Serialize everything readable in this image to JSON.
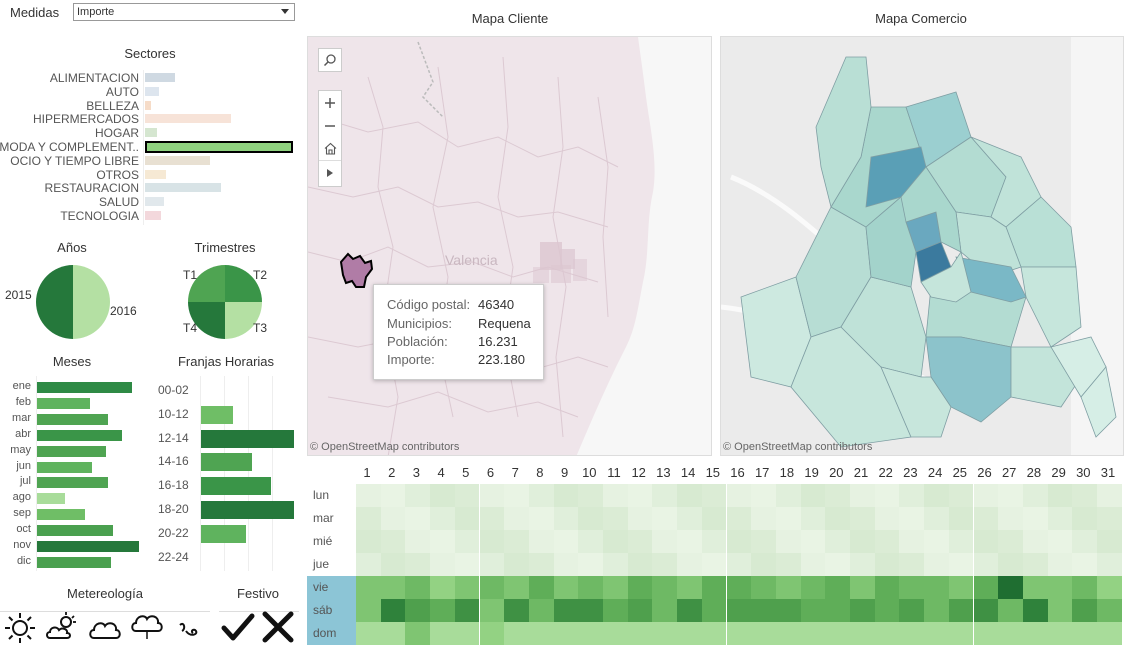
{
  "medidas": {
    "label": "Medidas",
    "selected": "Importe"
  },
  "sectores": {
    "title": "Sectores",
    "items": [
      {
        "label": "ALIMENTACION",
        "value": 30,
        "color": "#cfd9e2"
      },
      {
        "label": "AUTO",
        "value": 14,
        "color": "#dde5ee"
      },
      {
        "label": "BELLEZA",
        "value": 6,
        "color": "#f6dcc8"
      },
      {
        "label": "HIPERMERCADOS",
        "value": 86,
        "color": "#f7e3d8"
      },
      {
        "label": "HOGAR",
        "value": 12,
        "color": "#d5e6d0"
      },
      {
        "label": "MODA Y COMPLEMENT..",
        "value": 148,
        "color": "#8fd17f",
        "selected": true
      },
      {
        "label": "OCIO Y TIEMPO LIBRE",
        "value": 65,
        "color": "#e8e0d2"
      },
      {
        "label": "OTROS",
        "value": 21,
        "color": "#f6e9d4"
      },
      {
        "label": "RESTAURACION",
        "value": 76,
        "color": "#d8e3e6"
      },
      {
        "label": "SALUD",
        "value": 19,
        "color": "#e1e8ec"
      },
      {
        "label": "TECNOLOGIA",
        "value": 16,
        "color": "#f3d8dc"
      }
    ]
  },
  "anos": {
    "title": "Años",
    "label_left": "2015",
    "label_right": "2016"
  },
  "trimestres": {
    "title": "Trimestres",
    "labels": [
      "T1",
      "T2",
      "T3",
      "T4"
    ]
  },
  "meses": {
    "title": "Meses",
    "items": [
      {
        "label": "ene",
        "value": 95,
        "color": "#2e8a45"
      },
      {
        "label": "feb",
        "value": 53,
        "color": "#5fb35e"
      },
      {
        "label": "mar",
        "value": 71,
        "color": "#4fa452"
      },
      {
        "label": "abr",
        "value": 85,
        "color": "#3a9548"
      },
      {
        "label": "may",
        "value": 69,
        "color": "#4fa452"
      },
      {
        "label": "jun",
        "value": 55,
        "color": "#5fb35e"
      },
      {
        "label": "jul",
        "value": 71,
        "color": "#4fa452"
      },
      {
        "label": "ago",
        "value": 28,
        "color": "#a8dc9a"
      },
      {
        "label": "sep",
        "value": 48,
        "color": "#6fbe66"
      },
      {
        "label": "oct",
        "value": 76,
        "color": "#4aa04f"
      },
      {
        "label": "nov",
        "value": 102,
        "color": "#25783b"
      },
      {
        "label": "dic",
        "value": 74,
        "color": "#4aa04f"
      }
    ]
  },
  "franjas": {
    "title": "Franjas Horarias",
    "items": [
      {
        "label": "00-02",
        "value": 0,
        "color": "#9fd68f"
      },
      {
        "label": "10-12",
        "value": 32,
        "color": "#6fbe66"
      },
      {
        "label": "12-14",
        "value": 93,
        "color": "#25783b"
      },
      {
        "label": "14-16",
        "value": 51,
        "color": "#4fa452"
      },
      {
        "label": "16-18",
        "value": 70,
        "color": "#3a9548"
      },
      {
        "label": "18-20",
        "value": 93,
        "color": "#25783b"
      },
      {
        "label": "20-22",
        "value": 45,
        "color": "#5fb35e"
      },
      {
        "label": "22-24",
        "value": 0,
        "color": "#9fd68f"
      }
    ]
  },
  "mapa_cliente": {
    "title": "Mapa Cliente",
    "place_label": "Valencia",
    "credit": "© OpenStreetMap contributors"
  },
  "mapa_comercio": {
    "title": "Mapa Comercio",
    "credit": "© OpenStreetMap contributors"
  },
  "tooltip": {
    "rows": [
      {
        "key": "Código postal:",
        "value": "46340"
      },
      {
        "key": "Municipios:",
        "value": "Requena"
      },
      {
        "key": "Población:",
        "value": "16.231"
      },
      {
        "key": "Importe:",
        "value": "223.180"
      }
    ]
  },
  "heatmap": {
    "days": [
      "lun",
      "mar",
      "mié",
      "jue",
      "vie",
      "sáb",
      "dom"
    ],
    "columns": [
      "1",
      "2",
      "3",
      "4",
      "5",
      "6",
      "7",
      "8",
      "9",
      "10",
      "11",
      "12",
      "13",
      "14",
      "15",
      "16",
      "17",
      "18",
      "19",
      "20",
      "21",
      "22",
      "23",
      "24",
      "25",
      "26",
      "27",
      "28",
      "29",
      "30",
      "31"
    ],
    "highlight_color": "#8cc5d6"
  },
  "meteorologia": {
    "title": "Metereología",
    "icons": [
      "sun-icon",
      "partly-cloudy-icon",
      "cloud-icon",
      "rain-icon",
      "wind-icon"
    ]
  },
  "festivo": {
    "title": "Festivo",
    "icons": [
      "check-icon",
      "cross-icon"
    ]
  }
}
